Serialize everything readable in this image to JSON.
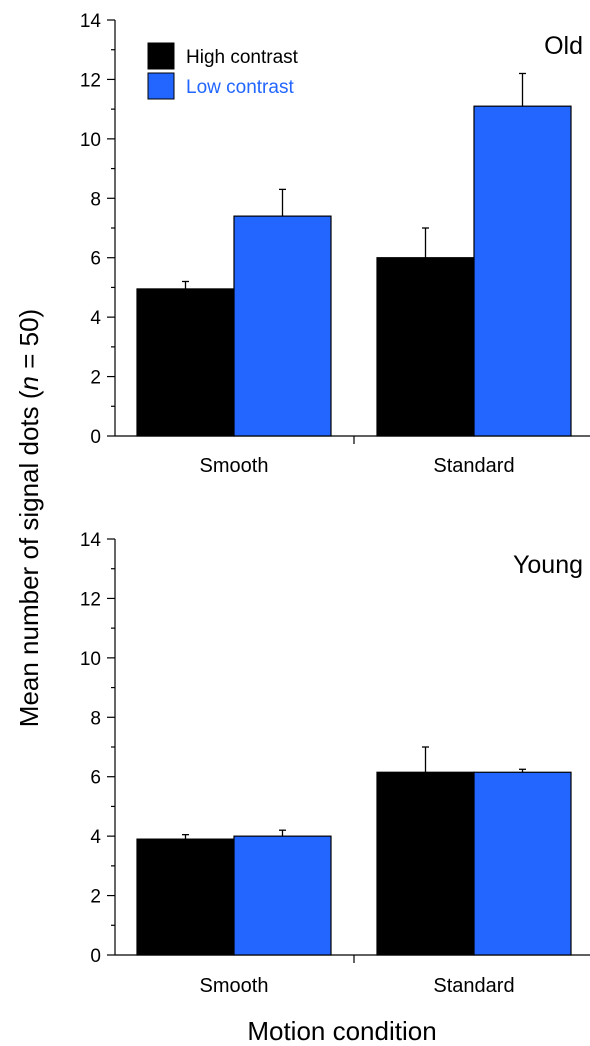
{
  "chart_data": {
    "type": "bar",
    "ylabel_parts": [
      "Mean number of signal dots (",
      "n",
      " = 50)"
    ],
    "xlabel": "Motion condition",
    "ylim": [
      0,
      14
    ],
    "yticks": [
      0,
      2,
      4,
      6,
      8,
      10,
      12,
      14
    ],
    "grid": false,
    "legend_position": "top-left",
    "error_bars": true,
    "series_colors": {
      "high": "#000000",
      "low": "#2266ff"
    },
    "legend": [
      {
        "label": "High contrast",
        "color": "#000000",
        "text_color": "#000000"
      },
      {
        "label": "Low contrast",
        "color": "#2266ff",
        "text_color": "#2266ff"
      }
    ],
    "panels": [
      {
        "label": "Old",
        "categories": [
          "Smooth",
          "Standard"
        ],
        "series": [
          {
            "name": "High contrast",
            "values": [
              4.95,
              6.0
            ],
            "errors": [
              0.25,
              1.0
            ]
          },
          {
            "name": "Low contrast",
            "values": [
              7.4,
              11.1
            ],
            "errors": [
              0.9,
              1.1
            ]
          }
        ]
      },
      {
        "label": "Young",
        "categories": [
          "Smooth",
          "Standard"
        ],
        "series": [
          {
            "name": "High contrast",
            "values": [
              3.9,
              6.15
            ],
            "errors": [
              0.15,
              0.85
            ]
          },
          {
            "name": "Low contrast",
            "values": [
              4.0,
              6.15
            ],
            "errors": [
              0.2,
              0.1
            ]
          }
        ]
      }
    ]
  }
}
